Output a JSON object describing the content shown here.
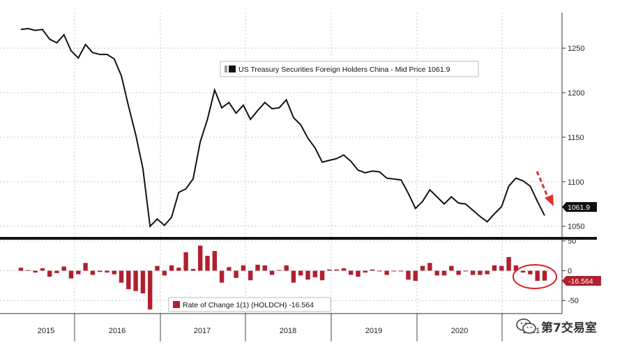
{
  "chart_data": [
    {
      "type": "line",
      "name_panel": "main",
      "legend": {
        "label": "US Treasury Securities Foreign Holders China - Mid Price 1061.9",
        "placement": "top-center"
      },
      "last_value_label": "1061.9",
      "y_ticks": [
        "1250",
        "1200",
        "1150",
        "1100",
        "1050"
      ],
      "ylim": [
        1038,
        1290
      ],
      "grid": true,
      "series": [
        {
          "values": [
            1271,
            1272,
            1270,
            1271,
            1260,
            1256,
            1265,
            1247,
            1239,
            1254,
            1245,
            1243,
            1243,
            1238,
            1219,
            1185,
            1153,
            1115,
            1050,
            1058,
            1051,
            1060,
            1088,
            1092,
            1103,
            1145,
            1170,
            1203,
            1183,
            1189,
            1177,
            1186,
            1170,
            1180,
            1189,
            1182,
            1183,
            1192,
            1172,
            1164,
            1149,
            1138,
            1122,
            1124,
            1126,
            1130,
            1123,
            1113,
            1110,
            1112,
            1111,
            1104,
            1103,
            1102,
            1087,
            1070,
            1078,
            1091,
            1083,
            1075,
            1083,
            1076,
            1075,
            1068,
            1061,
            1055,
            1064,
            1072,
            1095,
            1104,
            1101,
            1095,
            1078,
            1062
          ]
        }
      ]
    },
    {
      "type": "bar",
      "name_panel": "rate-of-change",
      "legend": {
        "label": "Rate of Change 1(1) (HOLDCH) -16.564",
        "placement": "bottom-center"
      },
      "last_value_label": "-16.564",
      "y_ticks": [
        "50",
        "0",
        "-50"
      ],
      "ylim": [
        -72,
        52
      ],
      "grid": true,
      "series": [
        {
          "values": [
            5,
            1,
            -3,
            4,
            -10,
            -4,
            7,
            -13,
            -6,
            13,
            -7,
            -2,
            -3,
            -6,
            -20,
            -31,
            -34,
            -38,
            -65,
            8,
            -8,
            9,
            5,
            31,
            3,
            42,
            25,
            33,
            -20,
            6,
            -12,
            9,
            -16,
            10,
            9,
            -7,
            1,
            9,
            -20,
            -8,
            -15,
            -11,
            -16,
            2,
            2,
            4,
            -7,
            -10,
            -3,
            2,
            -1,
            -7,
            -1,
            -1,
            -15,
            -17,
            8,
            13,
            -8,
            -8,
            8,
            -7,
            -1,
            -7,
            -7,
            -6,
            9,
            8,
            23,
            9,
            -3,
            -6,
            -17,
            -16.6
          ]
        }
      ]
    }
  ],
  "x_axis": {
    "year_labels": [
      "2015",
      "2016",
      "2017",
      "2018",
      "2019",
      "2020",
      "2021"
    ]
  },
  "colors": {
    "line": "#111111",
    "bar": "#b0202e",
    "accent_arrow": "#e03030",
    "circle": "#d92020"
  },
  "watermark": {
    "text": "第7交易室",
    "icon": "wechat-logo-icon"
  }
}
